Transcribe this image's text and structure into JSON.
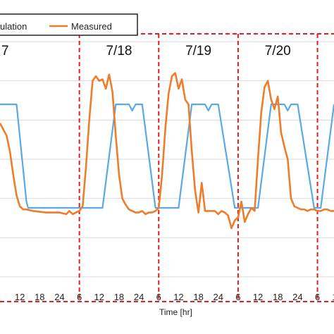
{
  "chart_data": {
    "type": "line",
    "xlabel": "Time [hr]",
    "x_ticks": [
      "12",
      "18",
      "24",
      "6",
      "12",
      "18",
      "24",
      "6",
      "12",
      "18",
      "24",
      "6",
      "12",
      "18",
      "24",
      "6",
      "12"
    ],
    "day_labels": [
      "7",
      "7/18",
      "7/19",
      "7/20"
    ],
    "legend": [
      "ulation",
      "Measured"
    ],
    "grid": true,
    "colors": {
      "simulation": "#5aa9e6",
      "measured": "#ee7d2b",
      "divider": "#e02020"
    },
    "series": [
      {
        "name": "ulation",
        "x": [
          0,
          5,
          8,
          8.5,
          24,
          31,
          35,
          39,
          40,
          41,
          42,
          43,
          47,
          48,
          54,
          58,
          62,
          63,
          64,
          65,
          66,
          71,
          72,
          78,
          82,
          86,
          87,
          88,
          89,
          90,
          95,
          96,
          97,
          101
        ],
        "y": [
          0.9,
          0.9,
          0.28,
          0.24,
          0.24,
          0.24,
          0.9,
          0.9,
          0.86,
          0.9,
          0.9,
          0.9,
          0.24,
          0.24,
          0.24,
          0.9,
          0.9,
          0.86,
          0.9,
          0.9,
          0.9,
          0.24,
          0.24,
          0.24,
          0.9,
          0.9,
          0.86,
          0.9,
          0.9,
          0.9,
          0.24,
          0.24,
          0.24,
          0.9
        ]
      },
      {
        "name": "Measured",
        "x": [
          0,
          2,
          3,
          4,
          5,
          6,
          7,
          8,
          10,
          14,
          18,
          20,
          21,
          22,
          23,
          24,
          25,
          26,
          27,
          28,
          29,
          30,
          31,
          32,
          33,
          34,
          35,
          36,
          37,
          38,
          39,
          40,
          41,
          42,
          43,
          44,
          45,
          46,
          47,
          48,
          49,
          50,
          51,
          52,
          53,
          54,
          55,
          56,
          57,
          58,
          59,
          60,
          61,
          62,
          63,
          64,
          65,
          66,
          67,
          68,
          69,
          70,
          71,
          72,
          73,
          74,
          75,
          76,
          77,
          78,
          79,
          80,
          81,
          82,
          83,
          84,
          85,
          86,
          87,
          88,
          89,
          90,
          91,
          92,
          93,
          94,
          95,
          96,
          97,
          98,
          99,
          100,
          101
        ],
        "y": [
          0.78,
          0.7,
          0.6,
          0.45,
          0.32,
          0.25,
          0.23,
          0.23,
          0.22,
          0.21,
          0.21,
          0.2,
          0.22,
          0.2,
          0.21,
          0.22,
          0.25,
          0.5,
          0.8,
          1.05,
          1.08,
          1.05,
          1.06,
          1.0,
          1.09,
          0.98,
          0.7,
          0.45,
          0.3,
          0.26,
          0.23,
          0.22,
          0.21,
          0.21,
          0.22,
          0.2,
          0.21,
          0.21,
          0.22,
          0.24,
          0.45,
          0.75,
          0.97,
          1.08,
          1.1,
          1.0,
          1.06,
          0.93,
          0.9,
          0.6,
          0.35,
          0.21,
          0.4,
          0.22,
          0.22,
          0.22,
          0.22,
          0.2,
          0.22,
          0.21,
          0.19,
          0.11,
          0.16,
          0.18,
          0.28,
          0.15,
          0.2,
          0.24,
          0.22,
          0.55,
          0.85,
          1.01,
          1.05,
          0.93,
          0.87,
          0.95,
          0.72,
          0.63,
          0.55,
          0.3,
          0.25,
          0.24,
          0.23,
          0.23,
          0.22,
          0.23,
          0.23,
          0.22,
          0.22,
          0.23,
          0.23,
          0.22,
          0.22
        ]
      }
    ],
    "x_range": [
      0,
      101
    ],
    "y_range": [
      -0.25,
      1.35
    ]
  }
}
